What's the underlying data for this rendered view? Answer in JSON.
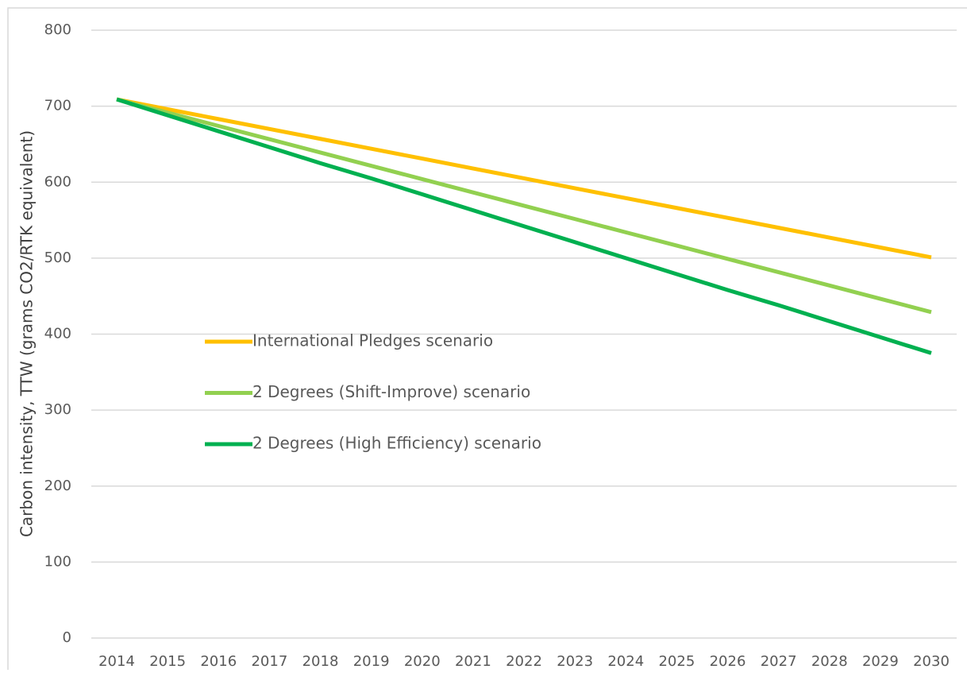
{
  "chart_data": {
    "type": "line",
    "y_label": "Carbon intensity, TTW (grams CO2/RTK equivalent)",
    "categories": [
      "2014",
      "2015",
      "2016",
      "2017",
      "2018",
      "2019",
      "2020",
      "2021",
      "2022",
      "2023",
      "2024",
      "2025",
      "2026",
      "2027",
      "2028",
      "2029",
      "2030"
    ],
    "series": [
      {
        "name": "International Pledges scenario",
        "color": "#ffc000",
        "values": [
          709,
          696,
          683,
          670,
          657,
          644,
          631,
          618,
          605,
          592,
          579,
          566,
          553,
          540,
          527,
          514,
          501
        ]
      },
      {
        "name": "2 Degrees (Shift-Improve) scenario",
        "color": "#92d050",
        "values": [
          709,
          691.5,
          674,
          656.5,
          639,
          621.5,
          604,
          586.5,
          569,
          551.5,
          534,
          516.5,
          499,
          481.5,
          464,
          446.5,
          429
        ]
      },
      {
        "name": "2 Degrees (High Efficiency) scenario",
        "color": "#00b050",
        "values": [
          709,
          688,
          667,
          646,
          625,
          605,
          584,
          563,
          542,
          521,
          500,
          479,
          458,
          438,
          417,
          396,
          375
        ]
      }
    ],
    "ylim": [
      0,
      800
    ],
    "yticks": [
      0,
      100,
      200,
      300,
      400,
      500,
      600,
      700,
      800
    ],
    "grid": true
  }
}
